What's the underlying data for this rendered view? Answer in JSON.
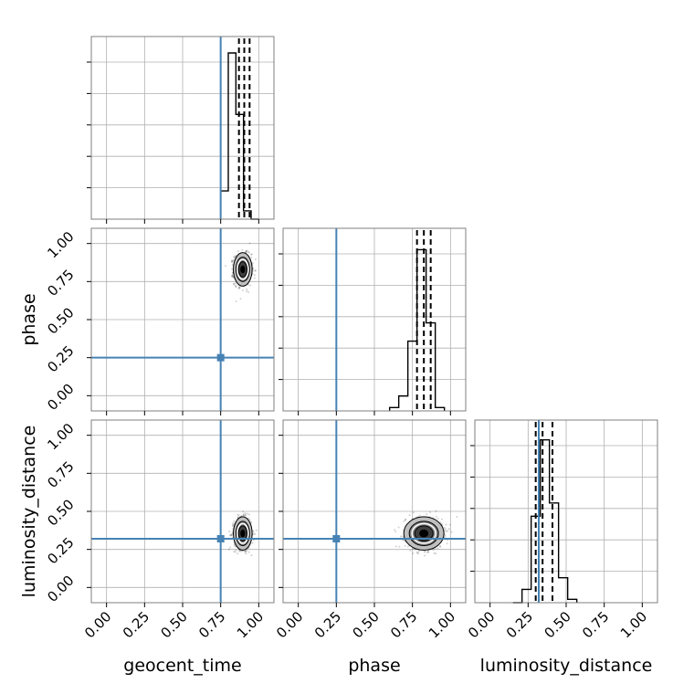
{
  "chart_data": {
    "type": "corner",
    "parameters": [
      "geocent_time",
      "phase",
      "luminosity_distance"
    ],
    "axis_range": [
      -0.1,
      1.1
    ],
    "ticks": [
      0.0,
      0.25,
      0.5,
      0.75,
      1.0
    ],
    "tick_labels": [
      "0.00",
      "0.25",
      "0.50",
      "0.75",
      "1.00"
    ],
    "grid": true,
    "colors": {
      "truth": "#4682b4",
      "samples": "#000000"
    },
    "truths": {
      "geocent_time": 0.75,
      "phase": 0.25,
      "luminosity_distance": 0.32
    },
    "histograms": {
      "geocent_time": {
        "bin_edges": [
          0.75,
          0.8,
          0.85,
          0.9,
          0.95,
          1.0
        ],
        "counts": [
          0.17,
          1.0,
          0.63,
          0.05,
          0.0
        ],
        "quantiles": [
          0.87,
          0.905,
          0.94
        ]
      },
      "phase": {
        "bin_edges": [
          0.6,
          0.66,
          0.72,
          0.78,
          0.84,
          0.9,
          0.96
        ],
        "counts": [
          0.02,
          0.09,
          0.42,
          0.97,
          0.53,
          0.02
        ],
        "quantiles": [
          0.78,
          0.825,
          0.87
        ]
      },
      "luminosity_distance": {
        "bin_edges": [
          0.15,
          0.21,
          0.27,
          0.33,
          0.39,
          0.45,
          0.51,
          0.57
        ],
        "counts": [
          0.0,
          0.08,
          0.52,
          0.98,
          0.6,
          0.15,
          0.02
        ],
        "quantiles": [
          0.3,
          0.345,
          0.41
        ]
      }
    },
    "posterior_2d": {
      "geocent_time__phase": {
        "center": [
          0.895,
          0.83
        ],
        "spread": [
          0.028,
          0.05
        ]
      },
      "geocent_time__luminosity_distance": {
        "center": [
          0.895,
          0.355
        ],
        "spread": [
          0.028,
          0.05
        ]
      },
      "phase__luminosity_distance": {
        "center": [
          0.825,
          0.355
        ],
        "spread": [
          0.06,
          0.05
        ]
      }
    }
  }
}
